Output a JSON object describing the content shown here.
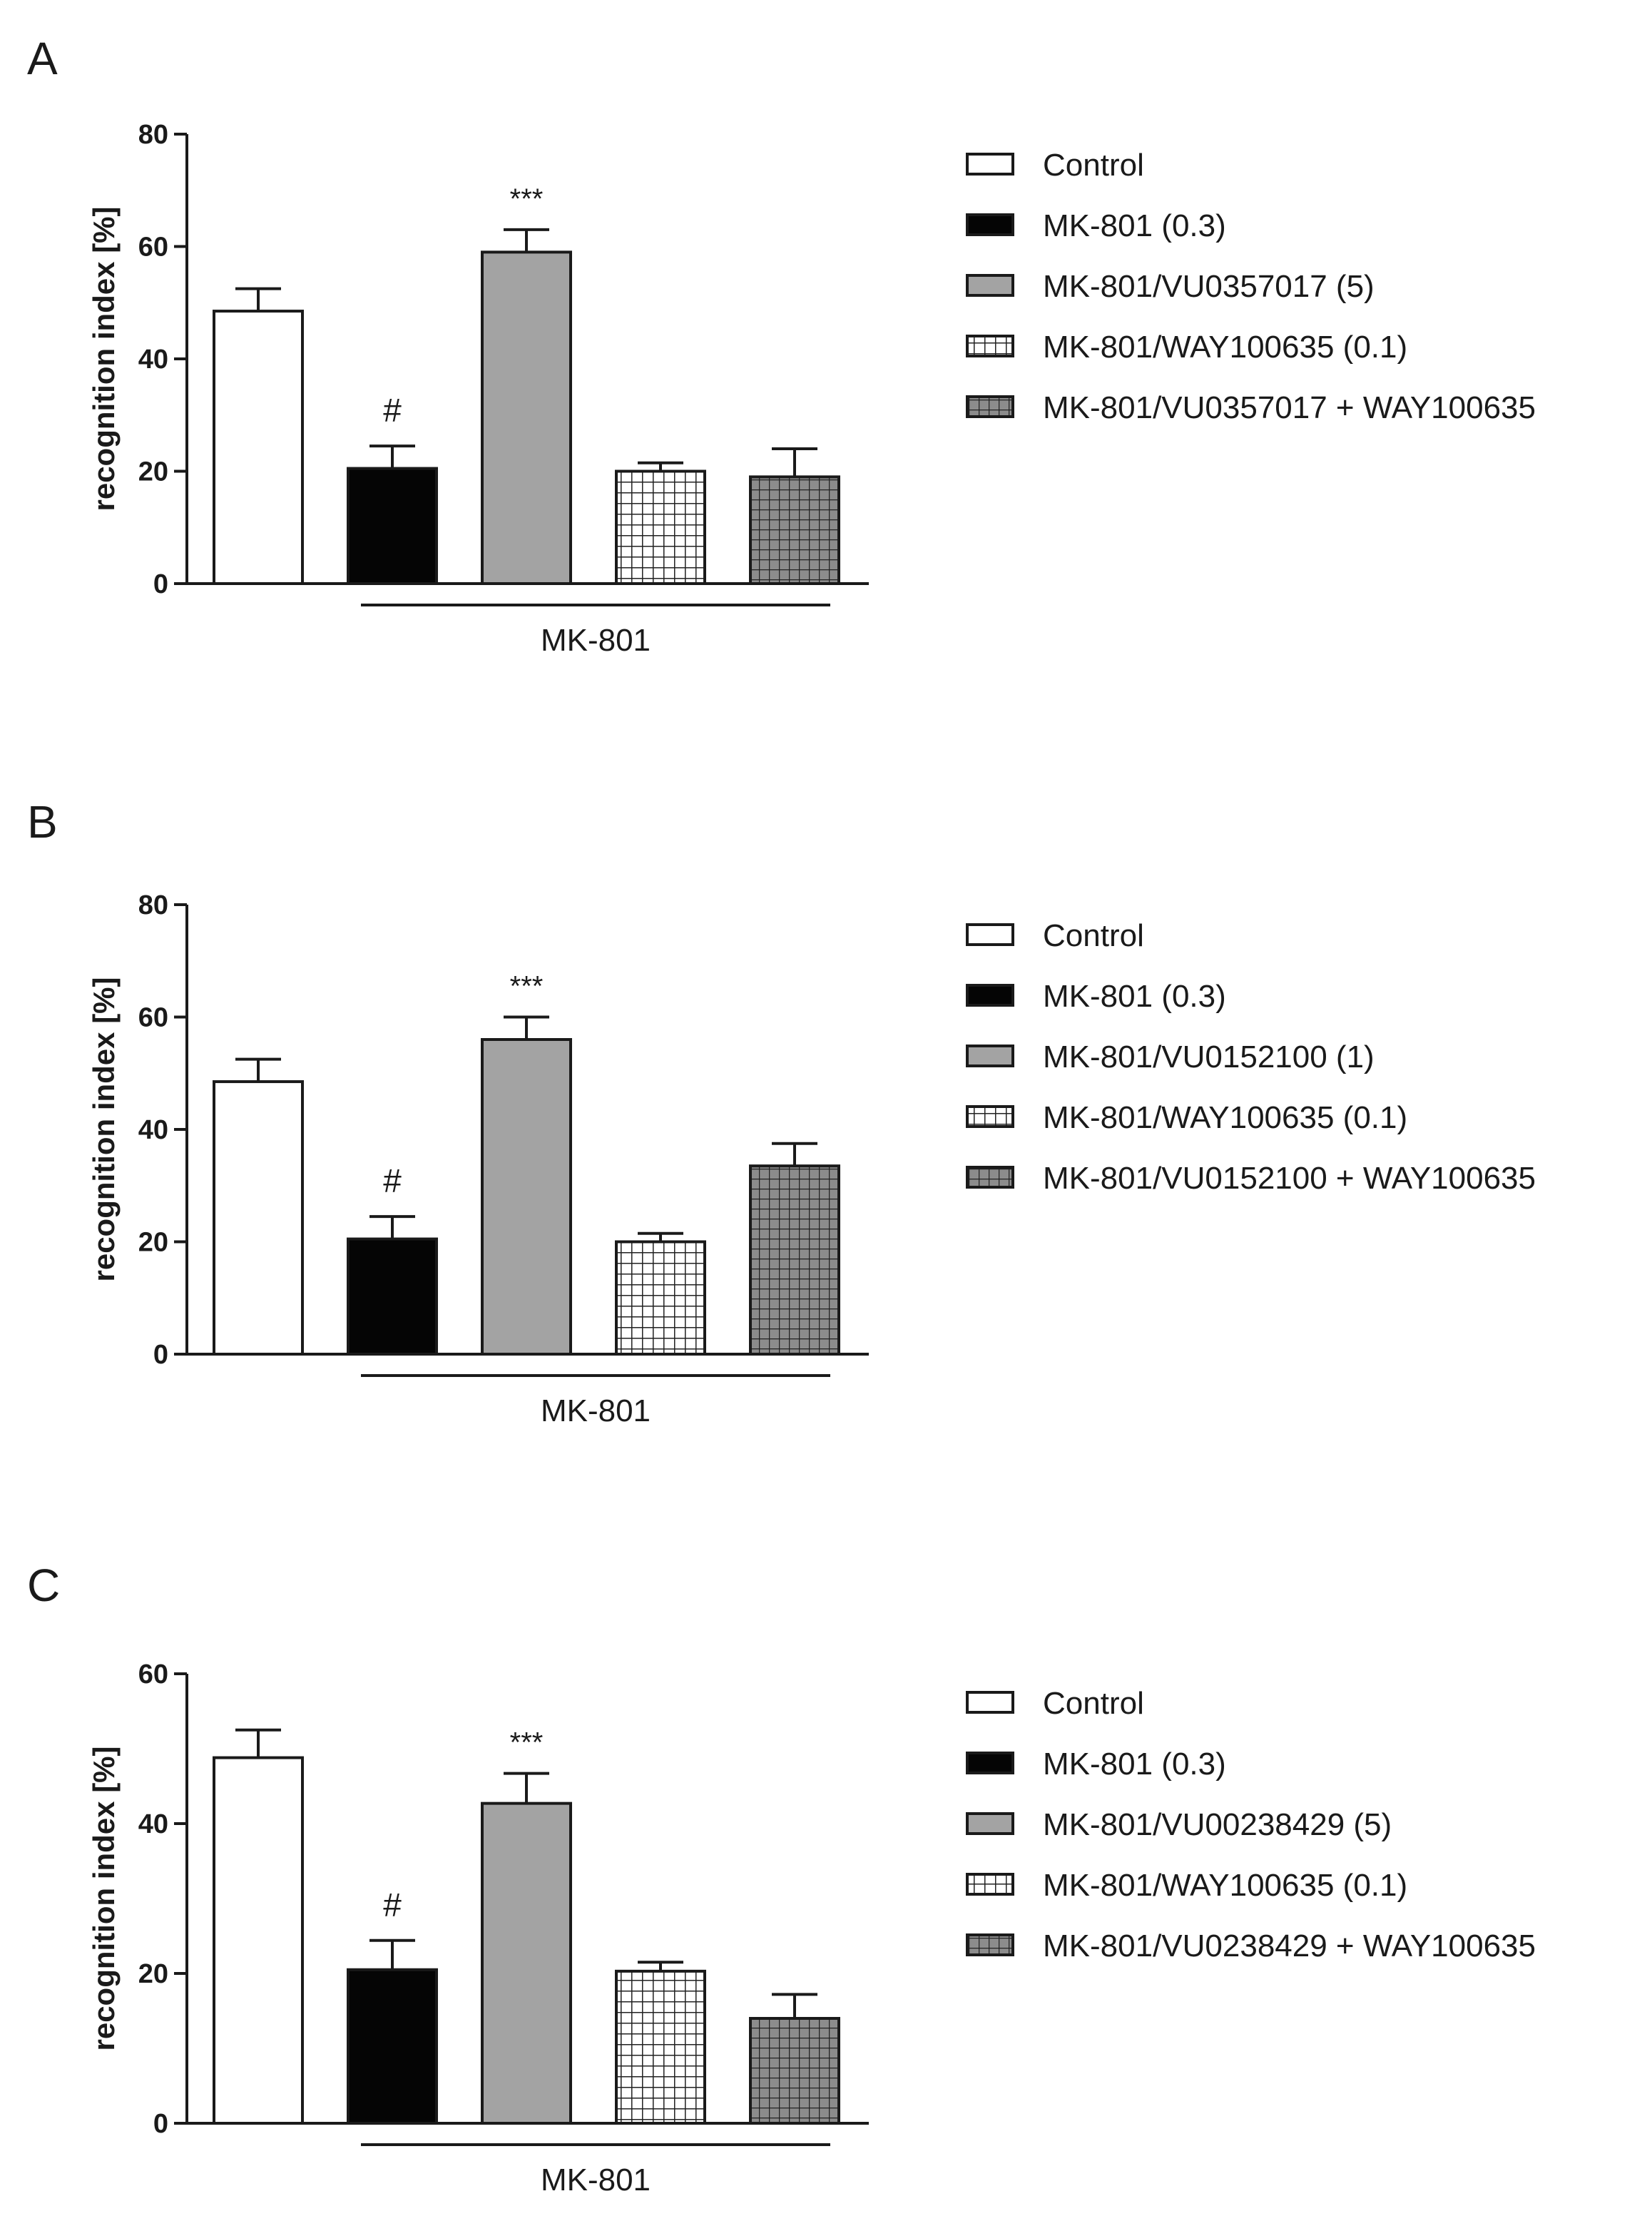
{
  "chart_data": [
    {
      "type": "bar",
      "panel": "A",
      "ylabel": "recognition index [%]",
      "ylim": [
        0,
        80
      ],
      "yticks": [
        0,
        20,
        40,
        60,
        80
      ],
      "categories": [
        "Control",
        "MK-801 (0.3)",
        "MK-801/VU0357017 (5)",
        "MK-801/WAY100635 (0.1)",
        "MK-801/VU0357017 + WAY100635"
      ],
      "values": [
        48.5,
        20.5,
        59,
        20,
        19
      ],
      "errors": [
        4,
        4,
        4,
        1.5,
        5
      ],
      "annotations": [
        "",
        "#",
        "***",
        "",
        ""
      ],
      "fills": [
        "white",
        "black",
        "gray",
        "grid-light",
        "grid-dark"
      ],
      "group_label": "MK-801"
    },
    {
      "type": "bar",
      "panel": "B",
      "ylabel": "recognition index [%]",
      "ylim": [
        0,
        80
      ],
      "yticks": [
        0,
        20,
        40,
        60,
        80
      ],
      "categories": [
        "Control",
        "MK-801 (0.3)",
        "MK-801/VU0152100 (1)",
        "MK-801/WAY100635 (0.1)",
        "MK-801/VU0152100 + WAY100635"
      ],
      "values": [
        48.5,
        20.5,
        56,
        20,
        33.5
      ],
      "errors": [
        4,
        4,
        4,
        1.5,
        4
      ],
      "annotations": [
        "",
        "#",
        "***",
        "",
        ""
      ],
      "fills": [
        "white",
        "black",
        "gray",
        "grid-light",
        "grid-dark"
      ],
      "group_label": "MK-801"
    },
    {
      "type": "bar",
      "panel": "C",
      "ylabel": "recognition index [%]",
      "ylim": [
        0,
        60
      ],
      "yticks": [
        0,
        20,
        40,
        60
      ],
      "categories": [
        "Control",
        "MK-801 (0.3)",
        "MK-801/VU00238429 (5)",
        "MK-801/WAY100635 (0.1)",
        "MK-801/VU0238429 + WAY100635"
      ],
      "values": [
        48.8,
        20.5,
        42.7,
        20.3,
        14
      ],
      "errors": [
        3.7,
        3.9,
        4,
        1.2,
        3.2
      ],
      "annotations": [
        "",
        "#",
        "***",
        "",
        ""
      ],
      "fills": [
        "white",
        "black",
        "gray",
        "grid-light",
        "grid-dark"
      ],
      "group_label": "MK-801"
    }
  ],
  "colors": {
    "axis": "#1a1a1a",
    "black_bar": "#050505",
    "gray_bar": "#a3a3a3",
    "grid_dark_bg": "#8c8c8c",
    "white_bar": "#ffffff"
  }
}
